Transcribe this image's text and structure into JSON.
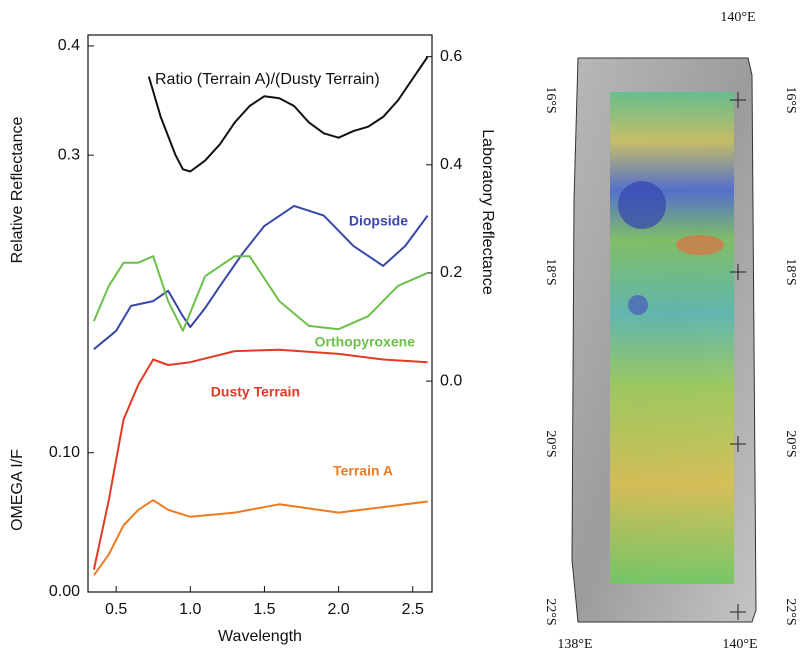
{
  "chart_data": {
    "type": "line",
    "x_label": "Wavelength",
    "y_label": "OMEGA I/F",
    "y3_label": "Relative Reflectance",
    "y2_label": "Laboratory Reflectance",
    "xlim": [
      0.31,
      2.63
    ],
    "xticks": [
      0.5,
      {
        "value": 1.0,
        "label": "1.0"
      },
      1.5,
      {
        "value": 2.0,
        "label": "2.0"
      },
      2.5
    ],
    "ylim": [
      0,
      0.4
    ],
    "yticks": [
      {
        "value": 0,
        "label": "0.00"
      },
      {
        "value": 0.1,
        "label": "0.10"
      }
    ],
    "y3lim": [
      -0.1,
      0.41
    ],
    "y3ticks": [
      0.3,
      0.4
    ],
    "y2lim": [
      -0.39,
      0.64
    ],
    "y2ticks": [
      {
        "value": 0,
        "label": "0.0"
      },
      0.2,
      0.4,
      0.6
    ],
    "series": [
      {
        "name": "Ratio (Terrain A)/(Dusty Terrain)",
        "color": "#111111",
        "axis": "y3",
        "x": [
          0.72,
          0.8,
          0.9,
          0.95,
          1.0,
          1.1,
          1.2,
          1.3,
          1.4,
          1.5,
          1.6,
          1.7,
          1.8,
          1.9,
          2.0,
          2.1,
          2.2,
          2.3,
          2.4,
          2.5,
          2.6
        ],
        "values": [
          0.372,
          0.335,
          0.3,
          0.287,
          0.285,
          0.295,
          0.31,
          0.33,
          0.345,
          0.354,
          0.352,
          0.345,
          0.33,
          0.32,
          0.316,
          0.322,
          0.326,
          0.335,
          0.35,
          0.37,
          0.39
        ]
      },
      {
        "name": "Diopside",
        "color": "#3a46a8",
        "axis": "y2",
        "x": [
          0.35,
          0.5,
          0.6,
          0.75,
          0.85,
          0.95,
          1.0,
          1.1,
          1.2,
          1.35,
          1.5,
          1.7,
          1.9,
          2.1,
          2.3,
          2.45,
          2.6
        ],
        "values": [
          0.059,
          0.093,
          0.139,
          0.148,
          0.167,
          0.12,
          0.1,
          0.135,
          0.176,
          0.235,
          0.287,
          0.324,
          0.306,
          0.25,
          0.213,
          0.25,
          0.306
        ]
      },
      {
        "name": "Orthopyroxene",
        "color": "#6cc04a",
        "axis": "y2",
        "x": [
          0.35,
          0.45,
          0.55,
          0.65,
          0.75,
          0.85,
          0.95,
          1.1,
          1.3,
          1.4,
          1.6,
          1.8,
          2.0,
          2.2,
          2.4,
          2.6
        ],
        "values": [
          0.111,
          0.176,
          0.219,
          0.219,
          0.231,
          0.148,
          0.093,
          0.194,
          0.231,
          0.231,
          0.148,
          0.102,
          0.096,
          0.12,
          0.176,
          0.2
        ]
      },
      {
        "name": "Dusty Terrain",
        "color": "#e23a22",
        "axis": "y",
        "x": [
          0.35,
          0.45,
          0.55,
          0.65,
          0.75,
          0.85,
          1.0,
          1.3,
          1.6,
          2.0,
          2.3,
          2.6
        ],
        "values": [
          0.016,
          0.066,
          0.124,
          0.149,
          0.167,
          0.163,
          0.165,
          0.173,
          0.174,
          0.171,
          0.167,
          0.165
        ]
      },
      {
        "name": "Terrain A",
        "color": "#f07a22",
        "axis": "y",
        "x": [
          0.35,
          0.45,
          0.55,
          0.65,
          0.75,
          0.85,
          1.0,
          1.3,
          1.6,
          2.0,
          2.3,
          2.6
        ],
        "values": [
          0.012,
          0.027,
          0.048,
          0.059,
          0.066,
          0.059,
          0.054,
          0.057,
          0.063,
          0.057,
          0.061,
          0.065
        ]
      }
    ]
  },
  "map": {
    "top_labels": [
      "140°E"
    ],
    "left_labels": [
      "16°S",
      "18°S",
      "20°S",
      "22°S"
    ],
    "right_labels": [
      "16°S",
      "18°S",
      "20°S",
      "22°S"
    ],
    "bottom_labels": [
      "138°E",
      "140°E"
    ]
  }
}
